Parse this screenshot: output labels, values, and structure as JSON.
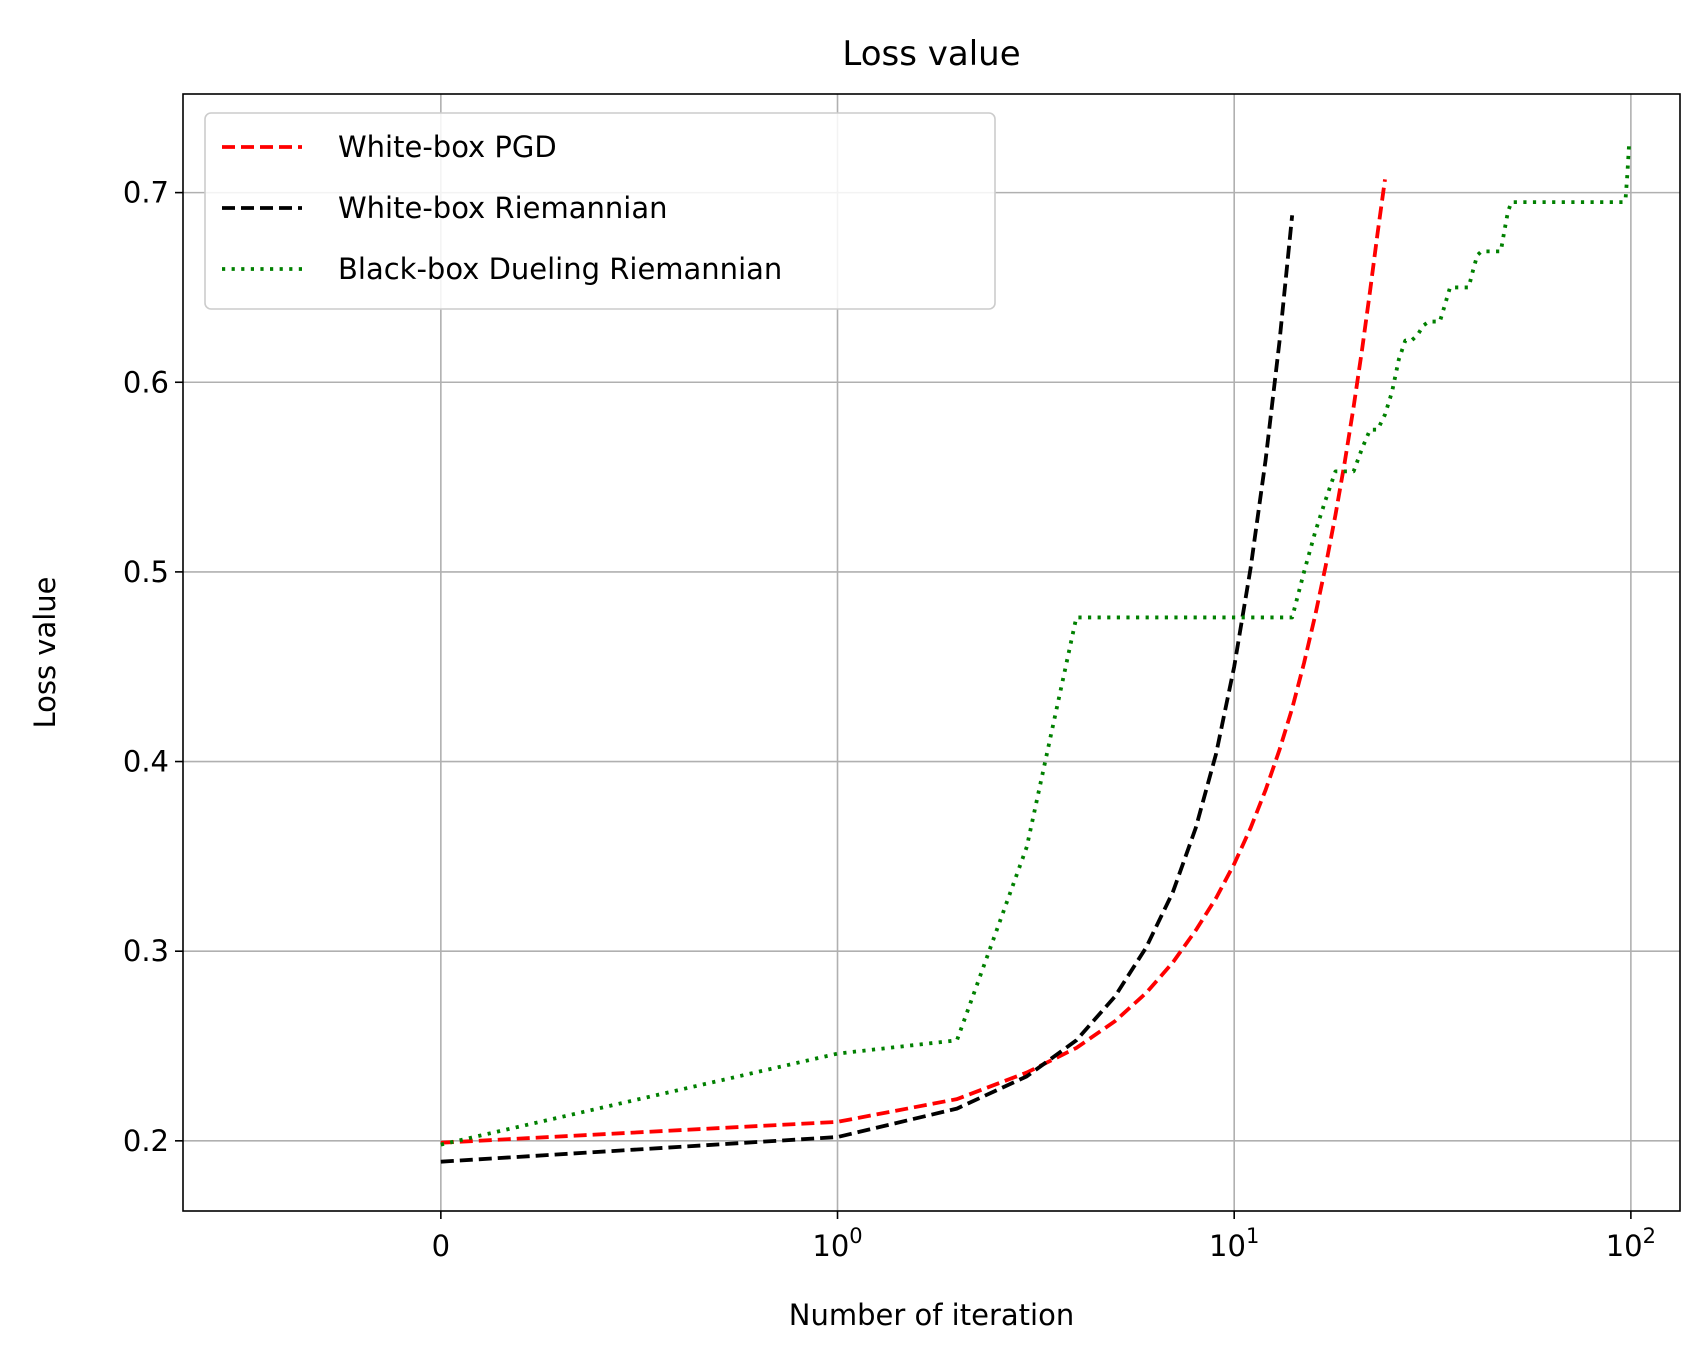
{
  "chart_data": {
    "type": "line",
    "title": "Loss value",
    "xlabel": "Number of iteration",
    "ylabel": "Loss value",
    "xscale": "symlog",
    "xlim": [
      -0.65,
      133
    ],
    "ylim": [
      0.163,
      0.752
    ],
    "grid": true,
    "legend_position": "upper-left",
    "x_ticks": [
      {
        "value": 0,
        "label": "0"
      },
      {
        "value": 1,
        "label": "10",
        "exponent": "0"
      },
      {
        "value": 10,
        "label": "10",
        "exponent": "1"
      },
      {
        "value": 100,
        "label": "10",
        "exponent": "2"
      }
    ],
    "y_ticks": [
      0.2,
      0.3,
      0.4,
      0.5,
      0.6,
      0.7
    ],
    "series": [
      {
        "name": "White-box PGD",
        "color": "#ff0000",
        "style": "dashed",
        "x": [
          0,
          1,
          2,
          3,
          4,
          5,
          6,
          7,
          8,
          9,
          10,
          11,
          12,
          13,
          14,
          15,
          16,
          17,
          18,
          19,
          20,
          21,
          22,
          23,
          24
        ],
        "y": [
          0.199,
          0.21,
          0.222,
          0.236,
          0.249,
          0.263,
          0.278,
          0.294,
          0.311,
          0.328,
          0.346,
          0.365,
          0.385,
          0.406,
          0.428,
          0.452,
          0.477,
          0.503,
          0.53,
          0.558,
          0.587,
          0.617,
          0.648,
          0.679,
          0.707
        ]
      },
      {
        "name": "White-box Riemannian",
        "color": "#000000",
        "style": "dashed",
        "x": [
          0,
          1,
          2,
          3,
          4,
          5,
          6,
          7,
          8,
          9,
          10,
          11,
          12,
          13,
          14
        ],
        "y": [
          0.189,
          0.202,
          0.217,
          0.234,
          0.253,
          0.276,
          0.302,
          0.331,
          0.365,
          0.404,
          0.45,
          0.502,
          0.559,
          0.621,
          0.688
        ]
      },
      {
        "name": "Black-box Dueling Riemannian",
        "color": "#008000",
        "style": "dotted",
        "x": [
          0,
          1,
          2,
          3,
          4,
          5,
          6,
          7,
          8,
          9,
          10,
          11,
          12,
          13,
          14,
          15,
          16,
          17,
          18,
          19,
          20,
          21,
          22,
          23,
          24,
          25,
          26,
          27,
          28,
          29,
          30,
          31,
          32,
          33,
          34,
          35,
          36,
          37,
          38,
          39,
          40,
          41,
          42,
          43,
          44,
          45,
          46,
          47,
          48,
          49,
          50,
          51,
          52,
          53,
          54,
          55,
          56,
          57,
          58,
          59,
          60,
          61,
          62,
          63,
          64,
          65,
          66,
          67,
          68,
          69,
          70,
          71,
          72,
          73,
          74,
          75,
          76,
          77,
          78,
          79,
          80,
          81,
          82,
          83,
          84,
          85,
          86,
          87,
          88,
          89,
          90,
          91,
          92,
          93,
          94,
          95,
          96,
          97,
          98,
          99
        ],
        "y": [
          0.198,
          0.246,
          0.253,
          0.355,
          0.476,
          0.476,
          0.476,
          0.476,
          0.476,
          0.476,
          0.476,
          0.476,
          0.476,
          0.476,
          0.476,
          0.5,
          0.521,
          0.538,
          0.553,
          0.553,
          0.553,
          0.565,
          0.575,
          0.575,
          0.583,
          0.595,
          0.612,
          0.622,
          0.622,
          0.625,
          0.63,
          0.632,
          0.632,
          0.632,
          0.641,
          0.65,
          0.65,
          0.65,
          0.65,
          0.65,
          0.659,
          0.667,
          0.669,
          0.669,
          0.669,
          0.669,
          0.669,
          0.669,
          0.68,
          0.69,
          0.695,
          0.695,
          0.695,
          0.695,
          0.695,
          0.695,
          0.695,
          0.695,
          0.695,
          0.695,
          0.695,
          0.695,
          0.695,
          0.695,
          0.695,
          0.695,
          0.695,
          0.695,
          0.695,
          0.695,
          0.695,
          0.695,
          0.695,
          0.695,
          0.695,
          0.695,
          0.695,
          0.695,
          0.695,
          0.695,
          0.695,
          0.695,
          0.695,
          0.695,
          0.695,
          0.695,
          0.695,
          0.695,
          0.695,
          0.695,
          0.695,
          0.695,
          0.695,
          0.695,
          0.695,
          0.695,
          0.695,
          0.697,
          0.71,
          0.726
        ]
      }
    ]
  }
}
